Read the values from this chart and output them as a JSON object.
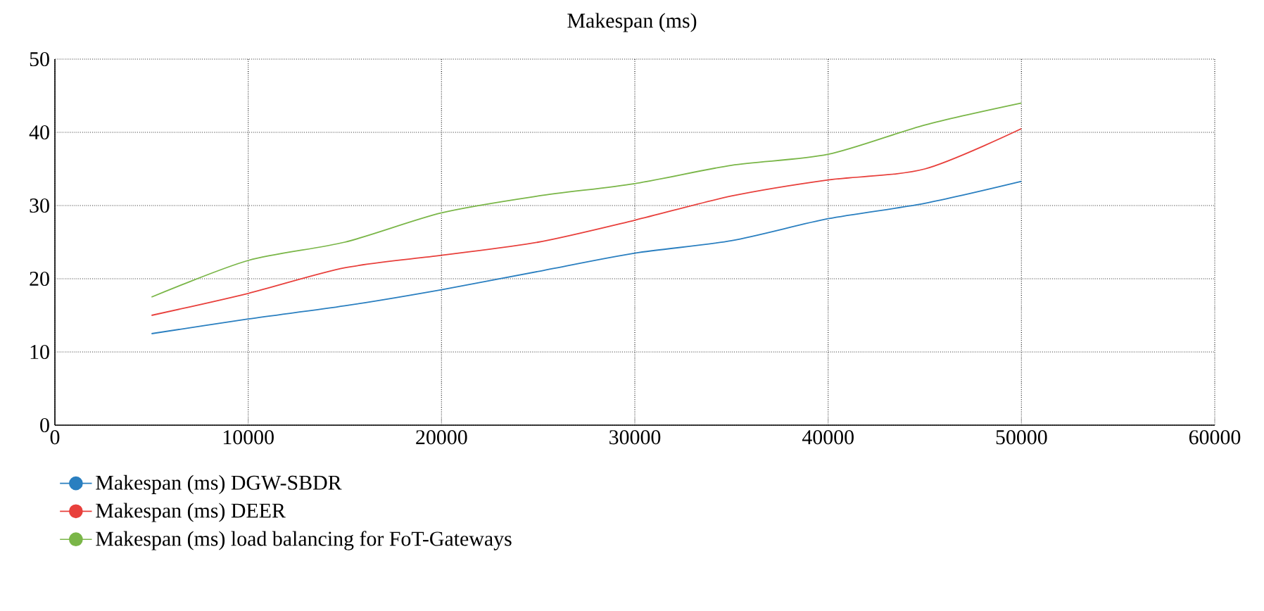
{
  "chart_data": {
    "type": "line",
    "title": "Makespan (ms)",
    "x": [
      5000,
      10000,
      15000,
      20000,
      25000,
      30000,
      35000,
      40000,
      45000,
      50000
    ],
    "series": [
      {
        "name": "Makespan (ms) DGW-SBDR",
        "color": "#2a7fc0",
        "values": [
          12.5,
          14.5,
          16.3,
          18.5,
          21,
          23.5,
          25.2,
          28.2,
          30.3,
          33.3
        ]
      },
      {
        "name": "Makespan (ms) DEER",
        "color": "#e8403c",
        "values": [
          15,
          18,
          21.5,
          23.2,
          25,
          28,
          31.3,
          33.5,
          35,
          40.5
        ]
      },
      {
        "name": "Makespan (ms) load balancing for FoT-Gateways",
        "color": "#7ab648",
        "values": [
          17.5,
          22.5,
          25,
          29,
          31.3,
          33,
          35.5,
          37,
          41,
          44
        ]
      }
    ],
    "xlim": [
      0,
      60000
    ],
    "xticks": [
      0,
      10000,
      20000,
      30000,
      40000,
      50000,
      60000
    ],
    "ylim": [
      0,
      50
    ],
    "yticks": [
      0,
      10,
      20,
      30,
      40,
      50
    ],
    "grid": true,
    "legend": "bottom",
    "marker": "none",
    "line_style": "solid"
  }
}
